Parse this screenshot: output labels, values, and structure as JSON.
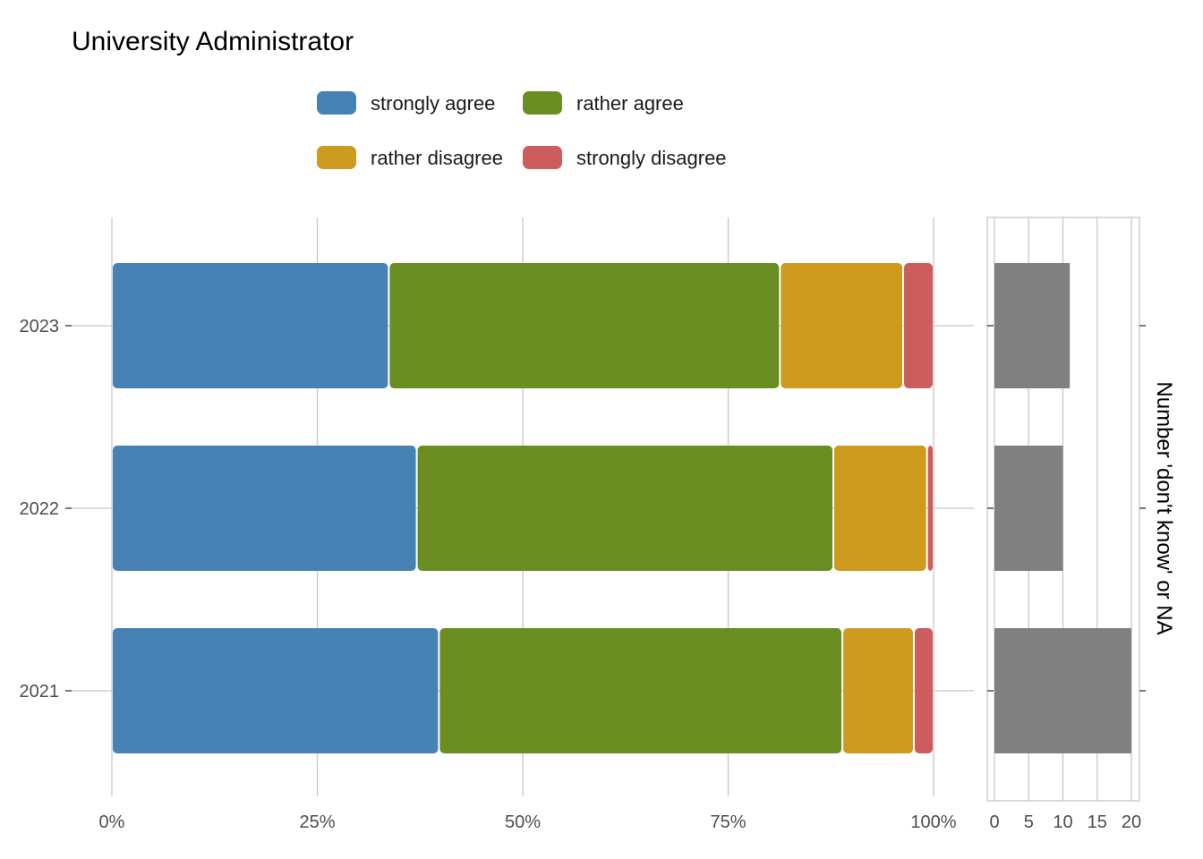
{
  "chart_data": [
    {
      "type": "bar",
      "orientation": "horizontal",
      "stacked": true,
      "title": "University Administrator",
      "categories": [
        "2023",
        "2022",
        "2021"
      ],
      "series": [
        {
          "name": "strongly agree",
          "color": "#4682B4",
          "values": [
            33.7,
            37.1,
            39.8
          ]
        },
        {
          "name": "rather agree",
          "color": "#6B8E23",
          "values": [
            47.6,
            50.7,
            49.1
          ]
        },
        {
          "name": "rather disagree",
          "color": "#CD9B1D",
          "values": [
            15.0,
            11.4,
            8.7
          ]
        },
        {
          "name": "strongly disagree",
          "color": "#CD5C5C",
          "values": [
            3.7,
            0.8,
            2.4
          ]
        }
      ],
      "xlim": [
        0,
        100
      ],
      "xticks": [
        0,
        25,
        50,
        75,
        100
      ],
      "xtick_labels": [
        "0%",
        "25%",
        "50%",
        "75%",
        "100%"
      ],
      "xlabel": "",
      "ylabel": "",
      "grid": true,
      "legend": "top"
    },
    {
      "type": "bar",
      "orientation": "horizontal",
      "categories": [
        "2023",
        "2022",
        "2021"
      ],
      "values": [
        11,
        10,
        20
      ],
      "color": "#808080",
      "xlim": [
        0,
        20
      ],
      "xticks": [
        0,
        5,
        10,
        15,
        20
      ],
      "xtick_labels": [
        "0",
        "5",
        "10",
        "15",
        "20"
      ],
      "side_label": "Number 'don't know' or NA",
      "grid": true
    }
  ]
}
